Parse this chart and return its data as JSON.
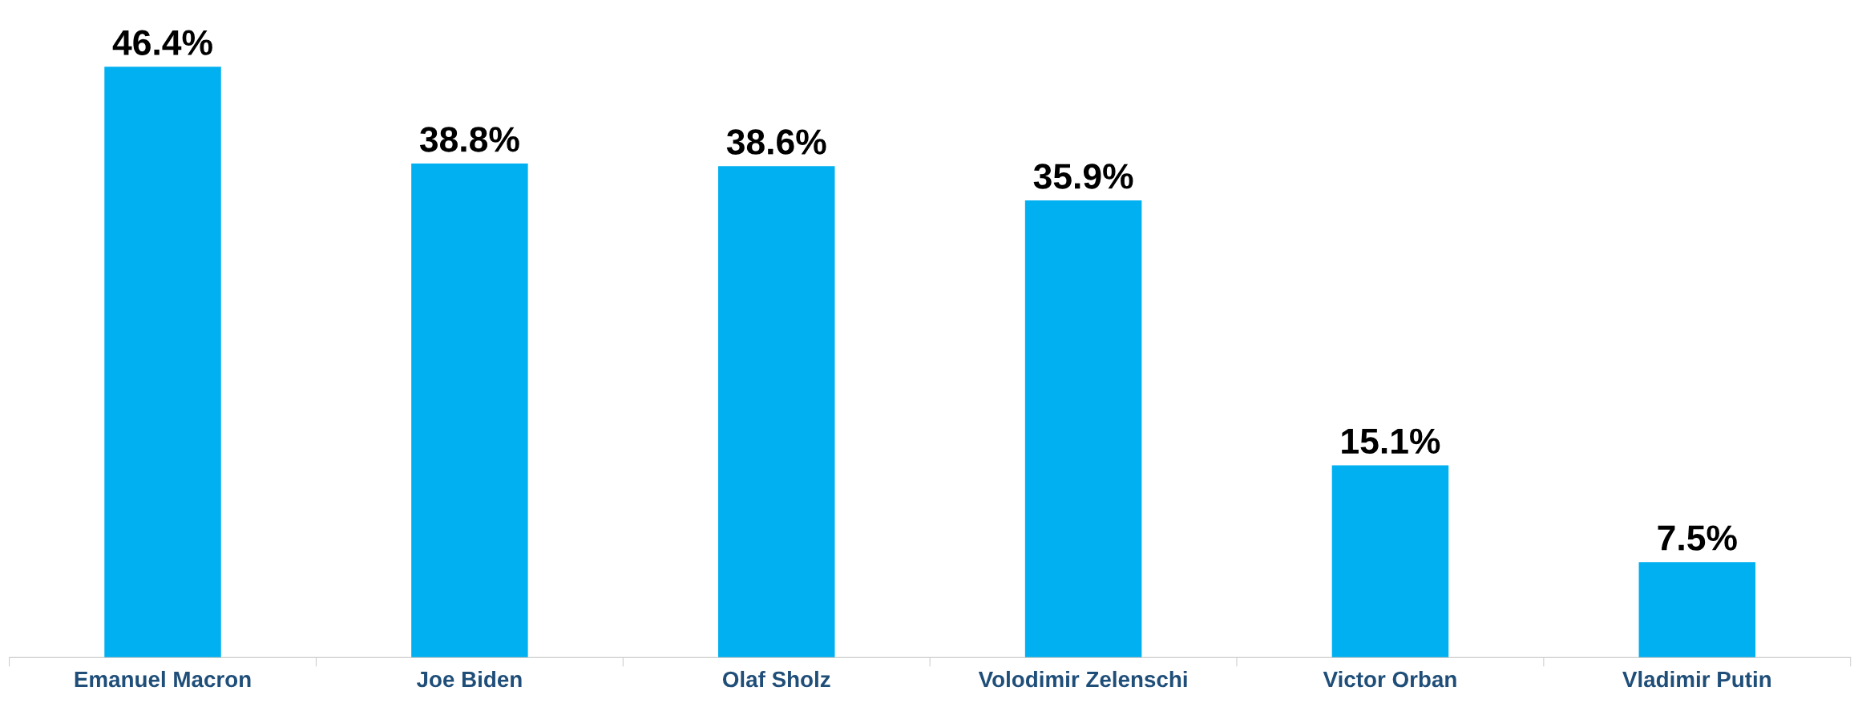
{
  "chart_data": {
    "type": "bar",
    "categories": [
      "Emanuel Macron",
      "Joe Biden",
      "Olaf Sholz",
      "Volodimir Zelenschi",
      "Victor Orban",
      "Vladimir Putin"
    ],
    "values": [
      46.4,
      38.8,
      38.6,
      35.9,
      15.1,
      7.5
    ],
    "value_labels": [
      "46.4%",
      "38.8%",
      "38.6%",
      "35.9%",
      "15.1%",
      "7.5%"
    ],
    "color": "#00b0f0",
    "grid": false,
    "legend": false
  }
}
